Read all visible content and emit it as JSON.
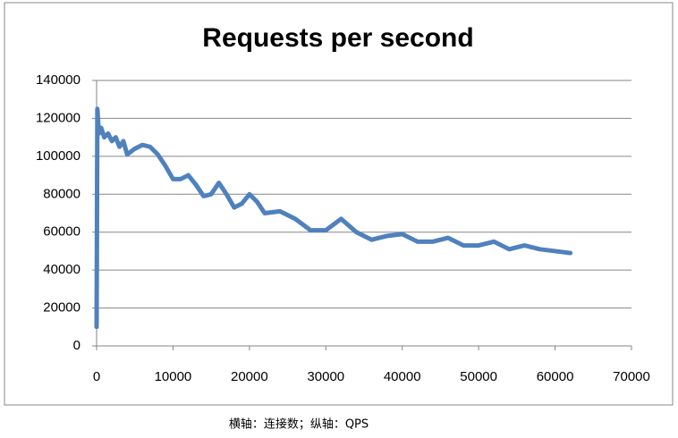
{
  "chart_data": {
    "type": "line",
    "title": "Requests per second",
    "caption": "横轴：连接数；纵轴：QPS",
    "color": "#4f81bd",
    "grid": true,
    "xlim": [
      0,
      70000
    ],
    "xticks": [
      0,
      10000,
      20000,
      30000,
      40000,
      50000,
      60000,
      70000
    ],
    "ylim": [
      0,
      140000
    ],
    "yticks": [
      0,
      20000,
      40000,
      60000,
      80000,
      100000,
      120000,
      140000
    ],
    "x": [
      0,
      100,
      300,
      600,
      1000,
      1500,
      2000,
      2500,
      3000,
      3500,
      4000,
      5000,
      6000,
      7000,
      8000,
      9000,
      10000,
      11000,
      12000,
      13000,
      14000,
      15000,
      16000,
      17000,
      18000,
      19000,
      20000,
      21000,
      22000,
      24000,
      26000,
      28000,
      30000,
      32000,
      34000,
      36000,
      38000,
      40000,
      42000,
      44000,
      46000,
      48000,
      50000,
      52000,
      54000,
      56000,
      58000,
      60000,
      62000
    ],
    "values": [
      10000,
      125000,
      112000,
      115000,
      110000,
      112000,
      108000,
      110000,
      105000,
      108000,
      101000,
      104000,
      106000,
      105000,
      101000,
      95000,
      88000,
      88000,
      90000,
      85000,
      79000,
      80000,
      86000,
      80000,
      73000,
      75000,
      80000,
      76000,
      70000,
      71000,
      67000,
      61000,
      61000,
      67000,
      60000,
      56000,
      58000,
      59000,
      55000,
      55000,
      57000,
      53000,
      53000,
      55000,
      51000,
      53000,
      51000,
      50000,
      49000
    ]
  }
}
